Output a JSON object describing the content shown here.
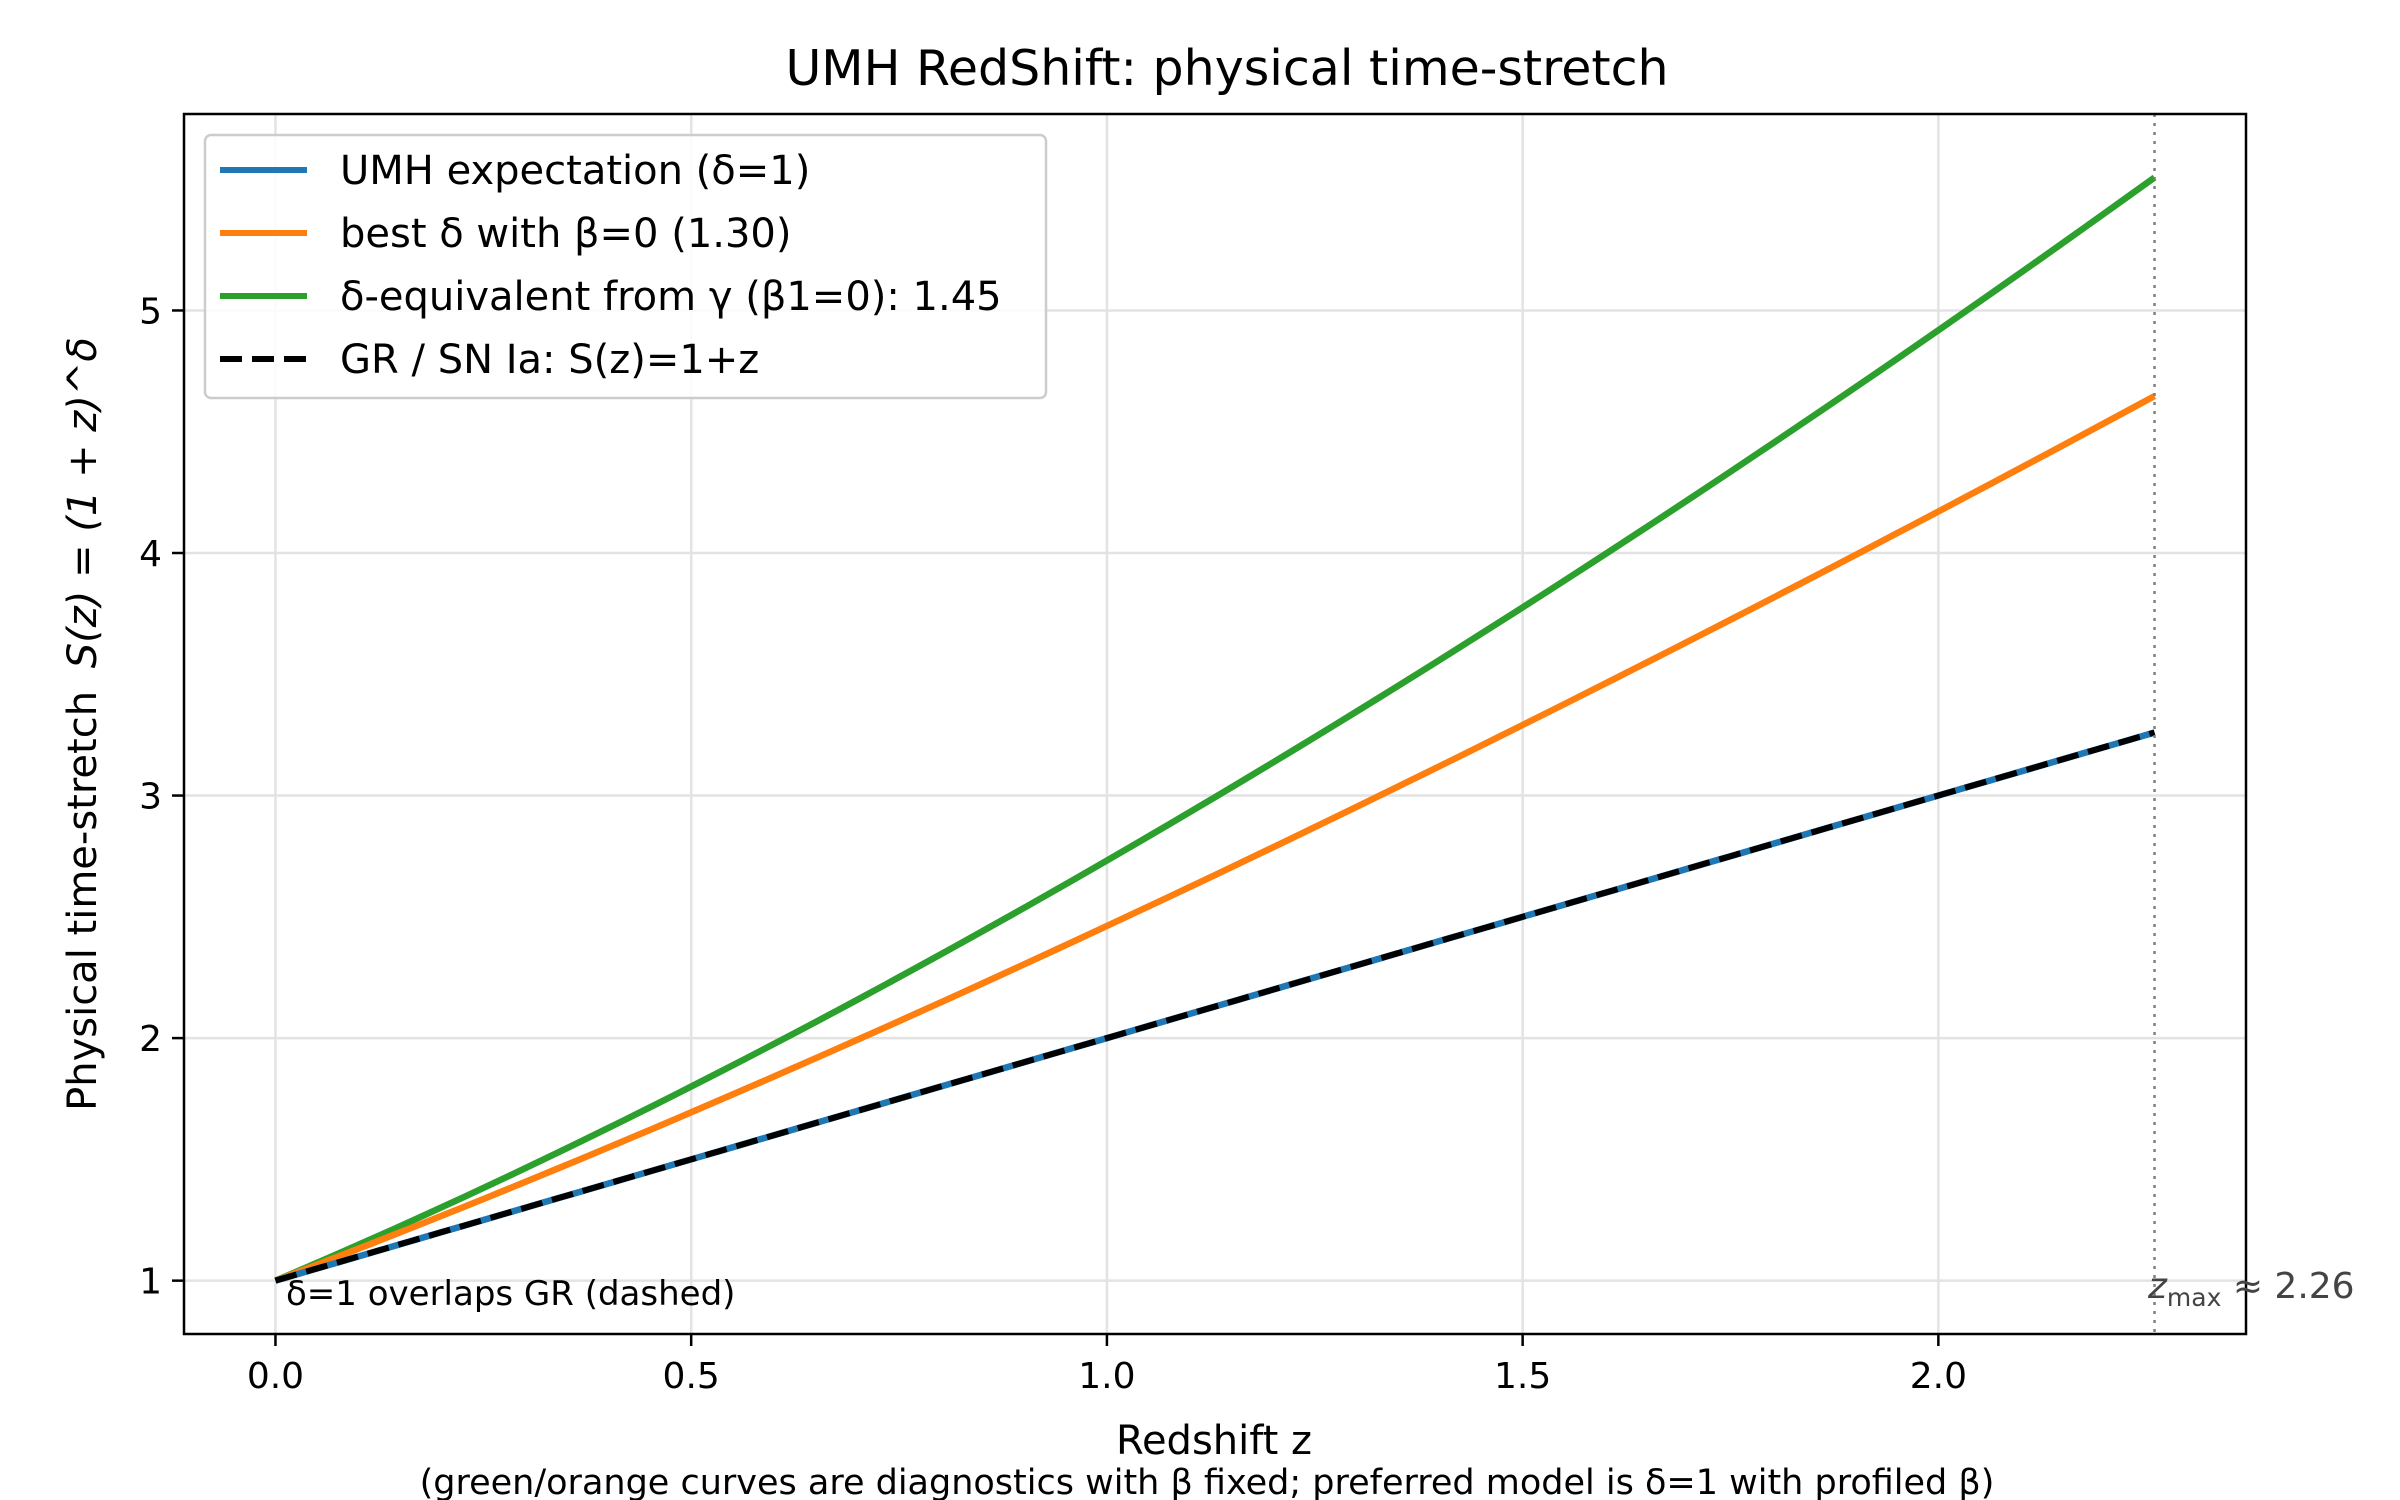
{
  "chart_data": {
    "type": "line",
    "title": "UMH RedShift: physical time-stretch",
    "xlabel": "Redshift z",
    "ylabel_text": "Physical time-stretch",
    "ylabel_math": "S(z) = (1 + z)^δ",
    "note": "(green/orange curves are diagnostics with β fixed; preferred model is δ=1 with profiled β)",
    "annotation": "δ=1 overlaps GR (dashed)",
    "zmax_label": {
      "symbol": "z",
      "sub": "max",
      "rest": " ≈ 2.26"
    },
    "xlim": [
      -0.11,
      2.37
    ],
    "ylim": [
      0.78,
      5.81
    ],
    "z_max": 2.26,
    "xticks": [
      0.0,
      0.5,
      1.0,
      1.5,
      2.0
    ],
    "xtick_labels": [
      "0.0",
      "0.5",
      "1.0",
      "1.5",
      "2.0"
    ],
    "yticks": [
      1,
      2,
      3,
      4,
      5
    ],
    "ytick_labels": [
      "1",
      "2",
      "3",
      "4",
      "5"
    ],
    "grid": true,
    "legend_position": "upper-left",
    "series": [
      {
        "name": "UMH expectation (δ=1)",
        "delta": 1.0,
        "color": "#1f77b4",
        "style": "solid",
        "x": [
          0.0,
          0.5,
          1.0,
          1.5,
          2.0,
          2.26
        ],
        "y": [
          1.0,
          1.5,
          2.0,
          2.5,
          3.0,
          3.26
        ]
      },
      {
        "name": "best δ with β=0 (1.30)",
        "delta": 1.3,
        "color": "#ff7f0e",
        "style": "solid",
        "x": [
          0.0,
          0.5,
          1.0,
          1.5,
          2.0,
          2.26
        ],
        "y": [
          1.0,
          1.69,
          2.46,
          3.29,
          4.17,
          4.66
        ]
      },
      {
        "name": "δ-equivalent from γ (β1=0): 1.45",
        "delta": 1.45,
        "color": "#2ca02c",
        "style": "solid",
        "x": [
          0.0,
          0.5,
          1.0,
          1.5,
          2.0,
          2.26
        ],
        "y": [
          1.0,
          1.8,
          2.73,
          3.78,
          4.92,
          5.56
        ]
      },
      {
        "name": "GR / SN Ia: S(z)=1+z",
        "delta": 1.0,
        "color": "#000000",
        "style": "dashed",
        "x": [
          0.0,
          0.5,
          1.0,
          1.5,
          2.0,
          2.26
        ],
        "y": [
          1.0,
          1.5,
          2.0,
          2.5,
          3.0,
          3.26
        ]
      }
    ]
  }
}
